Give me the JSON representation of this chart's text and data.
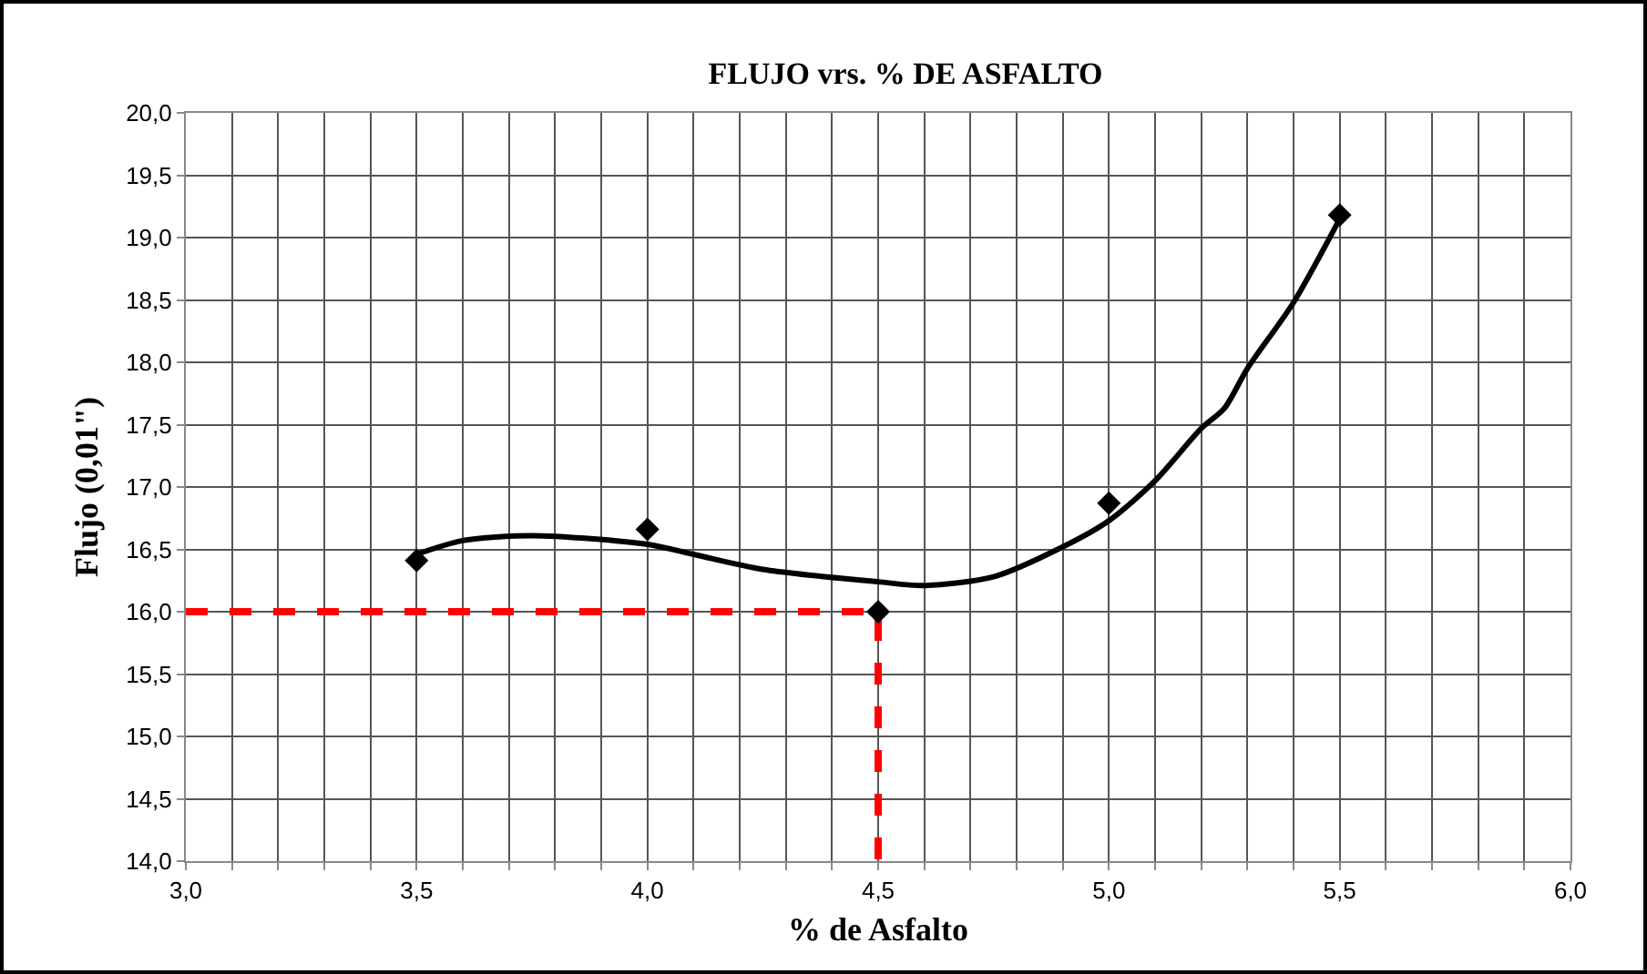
{
  "chart_data": {
    "type": "scatter",
    "title": "FLUJO vrs. % DE ASFALTO",
    "xlabel": "% de Asfalto",
    "ylabel": "Flujo (0,01\")",
    "xlim": [
      3.0,
      6.0
    ],
    "xticks": [
      {
        "value": 3.0,
        "label": "3,0"
      },
      {
        "value": 3.1,
        "label": null
      },
      {
        "value": 3.2,
        "label": null
      },
      {
        "value": 3.3,
        "label": null
      },
      {
        "value": 3.4,
        "label": null
      },
      {
        "value": 3.5,
        "label": "3,5"
      },
      {
        "value": 3.6,
        "label": null
      },
      {
        "value": 3.7,
        "label": null
      },
      {
        "value": 3.8,
        "label": null
      },
      {
        "value": 3.9,
        "label": null
      },
      {
        "value": 4.0,
        "label": "4,0"
      },
      {
        "value": 4.1,
        "label": null
      },
      {
        "value": 4.2,
        "label": null
      },
      {
        "value": 4.3,
        "label": null
      },
      {
        "value": 4.4,
        "label": null
      },
      {
        "value": 4.5,
        "label": "4,5"
      },
      {
        "value": 4.6,
        "label": null
      },
      {
        "value": 4.7,
        "label": null
      },
      {
        "value": 4.8,
        "label": null
      },
      {
        "value": 4.9,
        "label": null
      },
      {
        "value": 5.0,
        "label": "5,0"
      },
      {
        "value": 5.1,
        "label": null
      },
      {
        "value": 5.2,
        "label": null
      },
      {
        "value": 5.3,
        "label": null
      },
      {
        "value": 5.4,
        "label": null
      },
      {
        "value": 5.5,
        "label": "5,5"
      },
      {
        "value": 5.6,
        "label": null
      },
      {
        "value": 5.7,
        "label": null
      },
      {
        "value": 5.8,
        "label": null
      },
      {
        "value": 5.9,
        "label": null
      },
      {
        "value": 6.0,
        "label": "6,0"
      }
    ],
    "ylim": [
      14.0,
      20.0
    ],
    "yticks": [
      {
        "value": 14.0,
        "label": "14,0"
      },
      {
        "value": 14.5,
        "label": "14,5"
      },
      {
        "value": 15.0,
        "label": "15,0"
      },
      {
        "value": 15.5,
        "label": "15,5"
      },
      {
        "value": 16.0,
        "label": "16,0"
      },
      {
        "value": 16.5,
        "label": "16,5"
      },
      {
        "value": 17.0,
        "label": "17,0"
      },
      {
        "value": 17.5,
        "label": "17,5"
      },
      {
        "value": 18.0,
        "label": "18,0"
      },
      {
        "value": 18.5,
        "label": "18,5"
      },
      {
        "value": 19.0,
        "label": "19,0"
      },
      {
        "value": 19.5,
        "label": "19,5"
      },
      {
        "value": 20.0,
        "label": "20,0"
      }
    ],
    "grid": true,
    "series": [
      {
        "type": "line",
        "color": "#000000",
        "marker": "none",
        "line_style": "solid",
        "x": [
          3.5,
          3.6,
          3.75,
          4.0,
          4.1,
          4.25,
          4.5,
          4.6,
          4.75,
          4.9,
          5.0,
          5.1,
          5.2,
          5.25,
          5.3,
          5.4,
          5.5
        ],
        "values": [
          16.46,
          16.57,
          16.61,
          16.54,
          16.46,
          16.34,
          16.24,
          16.21,
          16.28,
          16.52,
          16.73,
          17.05,
          17.47,
          17.63,
          17.95,
          18.48,
          19.15
        ]
      },
      {
        "type": "line",
        "color": "#ff0000",
        "marker": "none",
        "line_style": "dashed",
        "x": [
          3.0,
          4.5,
          4.5
        ],
        "values": [
          16.0,
          16.0,
          14.0
        ]
      },
      {
        "type": "scatter",
        "color": "#000000",
        "marker": "diamond",
        "x": [
          3.5,
          4.0,
          4.5,
          5.0,
          5.5
        ],
        "values": [
          16.41,
          16.66,
          16.0,
          16.87,
          19.18
        ]
      }
    ]
  }
}
